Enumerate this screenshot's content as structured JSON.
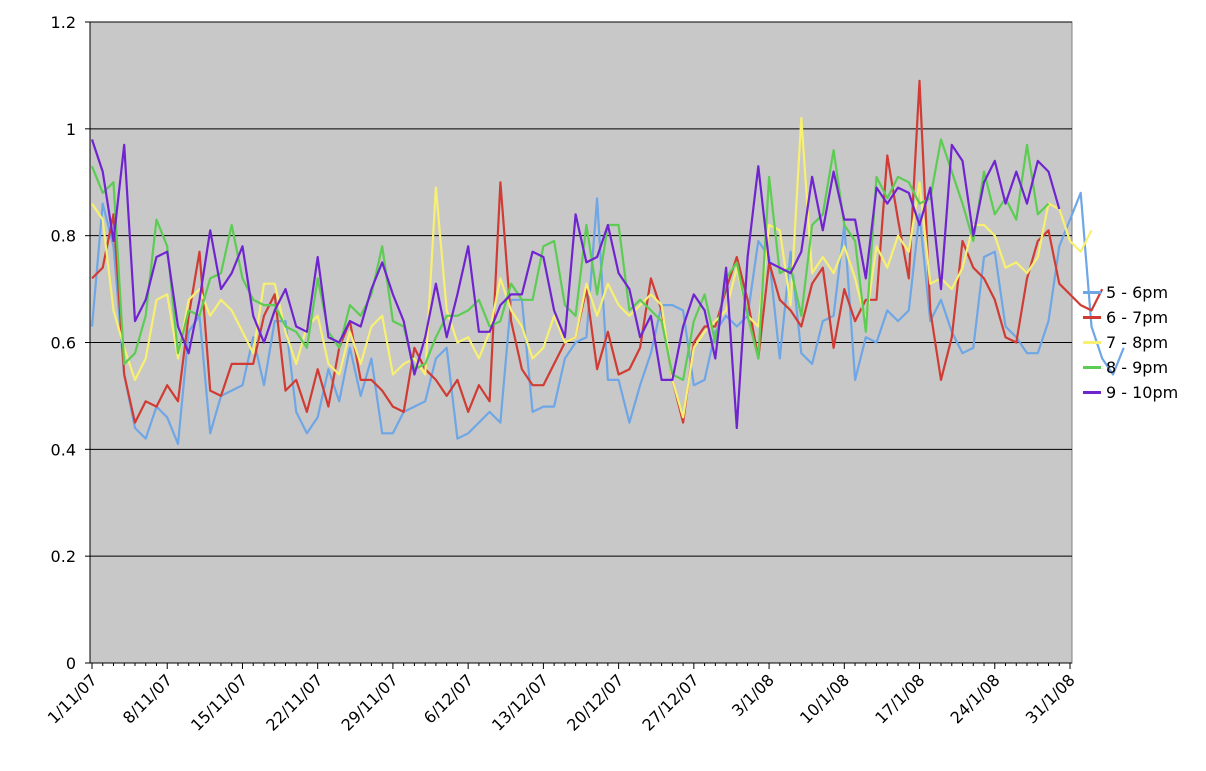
{
  "chart_data": {
    "type": "line",
    "title": "",
    "xlabel": "",
    "ylabel": "",
    "ylim": [
      0,
      1.2
    ],
    "yticks": [
      "0",
      "0.2",
      "0.4",
      "0.6",
      "0.8",
      "1",
      "1.2"
    ],
    "x_start": "1/11/07",
    "x_tick_labels": [
      "1/11/07",
      "8/11/07",
      "15/11/07",
      "22/11/07",
      "29/11/07",
      "6/12/07",
      "13/12/07",
      "20/12/07",
      "27/12/07",
      "3/1/08",
      "10/1/08",
      "17/1/08",
      "24/1/08",
      "31/1/08"
    ],
    "grid": true,
    "legend_position": "right",
    "background": "#c8c8c8",
    "series": [
      {
        "name": "5 - 6pm",
        "color": "#6ea6e6",
        "values": [
          0.63,
          0.86,
          0.78,
          0.54,
          0.44,
          0.42,
          0.48,
          0.46,
          0.41,
          0.62,
          0.65,
          0.43,
          0.5,
          0.51,
          0.52,
          0.61,
          0.52,
          0.64,
          0.64,
          0.47,
          0.43,
          0.46,
          0.55,
          0.49,
          0.59,
          0.5,
          0.57,
          0.43,
          0.43,
          0.47,
          0.48,
          0.49,
          0.57,
          0.59,
          0.42,
          0.43,
          0.45,
          0.47,
          0.45,
          0.68,
          0.68,
          0.47,
          0.48,
          0.48,
          0.57,
          0.6,
          0.61,
          0.87,
          0.53,
          0.53,
          0.45,
          0.52,
          0.58,
          0.67,
          0.67,
          0.66,
          0.52,
          0.53,
          0.62,
          0.65,
          0.63,
          0.65,
          0.79,
          0.76,
          0.57,
          0.77,
          0.58,
          0.56,
          0.64,
          0.65,
          0.82,
          0.53,
          0.61,
          0.6,
          0.66,
          0.64,
          0.66,
          0.84,
          0.64,
          0.68,
          0.62,
          0.58,
          0.59,
          0.76,
          0.77,
          0.63,
          0.61,
          0.58,
          0.58,
          0.64,
          0.78,
          0.83,
          0.88,
          0.63,
          0.57,
          0.54,
          0.59
        ]
      },
      {
        "name": "6 - 7pm",
        "color": "#d03c34",
        "values": [
          0.72,
          0.74,
          0.84,
          0.54,
          0.45,
          0.49,
          0.48,
          0.52,
          0.49,
          0.65,
          0.77,
          0.51,
          0.5,
          0.56,
          0.56,
          0.56,
          0.65,
          0.69,
          0.51,
          0.53,
          0.47,
          0.55,
          0.48,
          0.59,
          0.64,
          0.53,
          0.53,
          0.51,
          0.48,
          0.47,
          0.59,
          0.55,
          0.53,
          0.5,
          0.53,
          0.47,
          0.52,
          0.49,
          0.9,
          0.64,
          0.55,
          0.52,
          0.52,
          0.56,
          0.6,
          0.61,
          0.7,
          0.55,
          0.62,
          0.54,
          0.55,
          0.59,
          0.72,
          0.66,
          0.53,
          0.45,
          0.6,
          0.63,
          0.63,
          0.7,
          0.76,
          0.68,
          0.57,
          0.75,
          0.68,
          0.66,
          0.63,
          0.71,
          0.74,
          0.59,
          0.7,
          0.64,
          0.68,
          0.68,
          0.95,
          0.83,
          0.72,
          1.09,
          0.66,
          0.53,
          0.61,
          0.79,
          0.74,
          0.72,
          0.68,
          0.61,
          0.6,
          0.72,
          0.79,
          0.81,
          0.71,
          0.69,
          0.67,
          0.66,
          0.7
        ]
      },
      {
        "name": "7 - 8pm",
        "color": "#f8f070",
        "values": [
          0.86,
          0.83,
          0.66,
          0.59,
          0.53,
          0.57,
          0.68,
          0.69,
          0.57,
          0.68,
          0.7,
          0.65,
          0.68,
          0.66,
          0.62,
          0.58,
          0.71,
          0.71,
          0.62,
          0.56,
          0.63,
          0.65,
          0.56,
          0.54,
          0.62,
          0.56,
          0.63,
          0.65,
          0.54,
          0.56,
          0.57,
          0.54,
          0.89,
          0.66,
          0.6,
          0.61,
          0.57,
          0.62,
          0.72,
          0.66,
          0.63,
          0.57,
          0.59,
          0.65,
          0.6,
          0.61,
          0.71,
          0.65,
          0.71,
          0.67,
          0.65,
          0.67,
          0.69,
          0.67,
          0.53,
          0.46,
          0.59,
          0.62,
          0.64,
          0.66,
          0.74,
          0.65,
          0.63,
          0.82,
          0.81,
          0.67,
          1.02,
          0.73,
          0.76,
          0.73,
          0.78,
          0.72,
          0.64,
          0.78,
          0.74,
          0.8,
          0.77,
          0.9,
          0.71,
          0.72,
          0.7,
          0.74,
          0.82,
          0.82,
          0.8,
          0.74,
          0.75,
          0.73,
          0.76,
          0.86,
          0.85,
          0.79,
          0.77,
          0.81
        ]
      },
      {
        "name": "8 - 9pm",
        "color": "#5ccc52",
        "values": [
          0.93,
          0.88,
          0.9,
          0.56,
          0.58,
          0.65,
          0.83,
          0.78,
          0.58,
          0.66,
          0.65,
          0.72,
          0.73,
          0.82,
          0.72,
          0.68,
          0.67,
          0.67,
          0.63,
          0.62,
          0.59,
          0.72,
          0.62,
          0.59,
          0.67,
          0.65,
          0.69,
          0.78,
          0.64,
          0.63,
          0.55,
          0.56,
          0.61,
          0.65,
          0.65,
          0.66,
          0.68,
          0.63,
          0.64,
          0.71,
          0.68,
          0.68,
          0.78,
          0.79,
          0.67,
          0.65,
          0.82,
          0.69,
          0.82,
          0.82,
          0.66,
          0.68,
          0.66,
          0.64,
          0.54,
          0.53,
          0.64,
          0.69,
          0.6,
          0.72,
          0.75,
          0.65,
          0.57,
          0.91,
          0.73,
          0.74,
          0.65,
          0.82,
          0.84,
          0.96,
          0.82,
          0.79,
          0.62,
          0.91,
          0.87,
          0.91,
          0.9,
          0.86,
          0.87,
          0.98,
          0.92,
          0.86,
          0.79,
          0.92,
          0.84,
          0.87,
          0.83,
          0.97,
          0.84,
          0.86
        ]
      },
      {
        "name": "9 - 10pm",
        "color": "#7024d0",
        "values": [
          0.98,
          0.92,
          0.79,
          0.97,
          0.64,
          0.68,
          0.76,
          0.77,
          0.63,
          0.58,
          0.68,
          0.81,
          0.7,
          0.73,
          0.78,
          0.65,
          0.6,
          0.66,
          0.7,
          0.63,
          0.62,
          0.76,
          0.61,
          0.6,
          0.64,
          0.63,
          0.7,
          0.75,
          0.69,
          0.64,
          0.54,
          0.61,
          0.71,
          0.61,
          0.69,
          0.78,
          0.62,
          0.62,
          0.67,
          0.69,
          0.69,
          0.77,
          0.76,
          0.66,
          0.61,
          0.84,
          0.75,
          0.76,
          0.82,
          0.73,
          0.7,
          0.61,
          0.65,
          0.53,
          0.53,
          0.63,
          0.69,
          0.66,
          0.57,
          0.74,
          0.44,
          0.76,
          0.93,
          0.75,
          0.74,
          0.73,
          0.77,
          0.91,
          0.81,
          0.92,
          0.83,
          0.83,
          0.72,
          0.89,
          0.86,
          0.89,
          0.88,
          0.82,
          0.89,
          0.7,
          0.97,
          0.94,
          0.8,
          0.9,
          0.94,
          0.86,
          0.92,
          0.86,
          0.94,
          0.92,
          0.85
        ]
      }
    ]
  }
}
